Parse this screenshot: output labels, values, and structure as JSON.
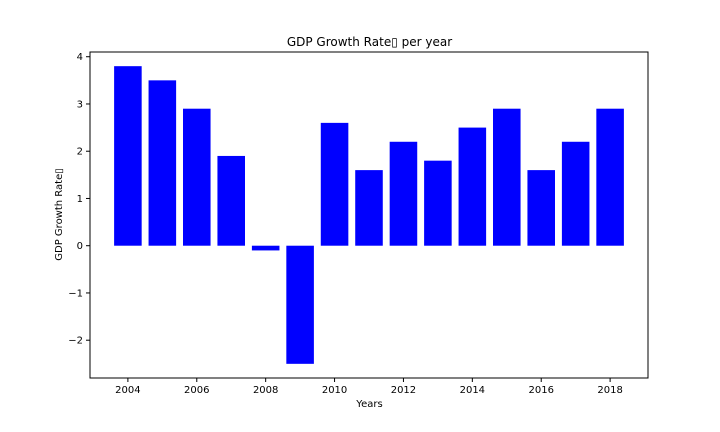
{
  "chart_data": {
    "type": "bar",
    "title": "GDP Growth Rate▯ per year",
    "xlabel": "Years",
    "ylabel": "GDP Growth Rate▯",
    "color": "#0000ff",
    "x": [
      2004,
      2005,
      2006,
      2007,
      2008,
      2009,
      2010,
      2011,
      2012,
      2013,
      2014,
      2015,
      2016,
      2017,
      2018
    ],
    "values": [
      3.8,
      3.5,
      2.9,
      1.9,
      -0.1,
      -2.5,
      2.6,
      1.6,
      2.2,
      1.8,
      2.5,
      2.9,
      1.6,
      2.2,
      2.9
    ],
    "xlim": [
      2002.9,
      2019.1
    ],
    "ylim": [
      -2.8,
      4.1
    ],
    "xticks": [
      2004,
      2006,
      2008,
      2010,
      2012,
      2014,
      2016,
      2018
    ],
    "xtick_labels": [
      "2004",
      "2006",
      "2008",
      "2010",
      "2012",
      "2014",
      "2016",
      "2018"
    ],
    "yticks": [
      -2,
      -1,
      0,
      1,
      2,
      3,
      4
    ],
    "ytick_labels": [
      "−2",
      "−1",
      "0",
      "1",
      "2",
      "3",
      "4"
    ],
    "grid": false,
    "legend": false
  }
}
